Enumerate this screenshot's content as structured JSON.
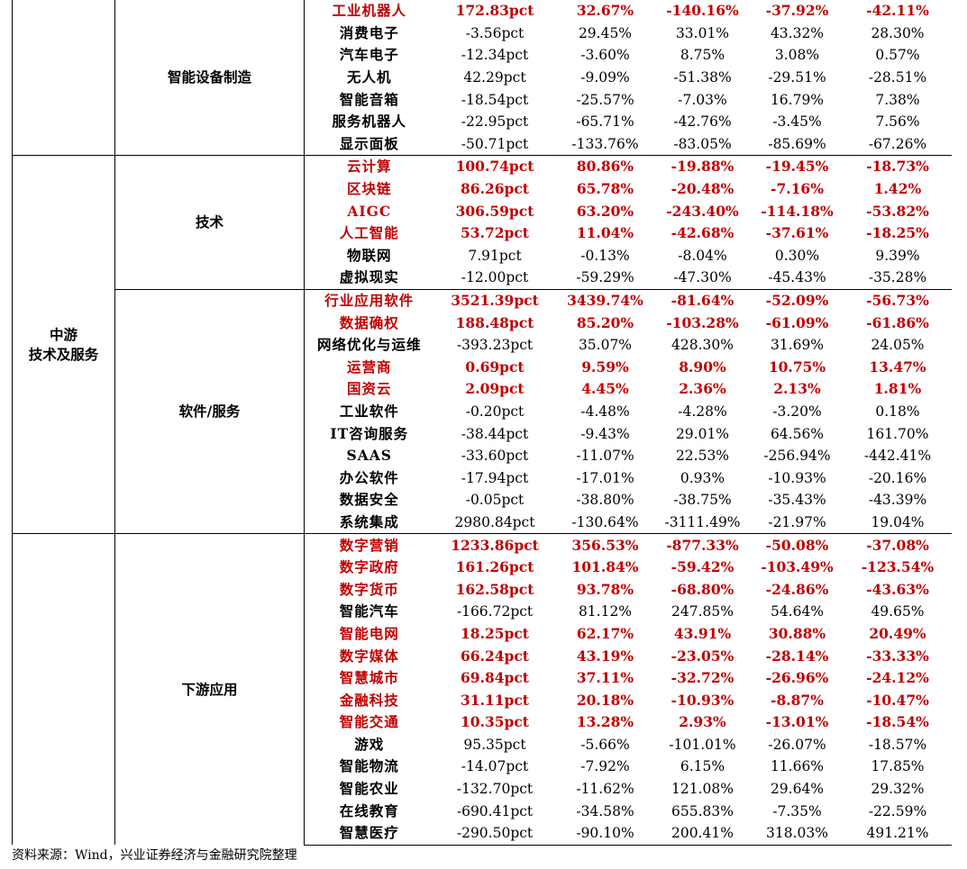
{
  "source_note": "资料来源：Wind，兴业证券经济与金融研究院整理",
  "sections": [
    {
      "stage": "",
      "subgroups": [
        {
          "name": "智能设备制造",
          "rows": [
            {
              "name": "工业机器人",
              "values": [
                "172.83pct",
                "32.67%",
                "-140.16%",
                "-37.92%",
                "-42.11%"
              ],
              "highlight": true
            },
            {
              "name": "消费电子",
              "values": [
                "-3.56pct",
                "29.45%",
                "33.01%",
                "43.32%",
                "28.30%"
              ],
              "highlight": false
            },
            {
              "name": "汽车电子",
              "values": [
                "-12.34pct",
                "-3.60%",
                "8.75%",
                "3.08%",
                "0.57%"
              ],
              "highlight": false
            },
            {
              "name": "无人机",
              "values": [
                "42.29pct",
                "-9.09%",
                "-51.38%",
                "-29.51%",
                "-28.51%"
              ],
              "highlight": false
            },
            {
              "name": "智能音箱",
              "values": [
                "-18.54pct",
                "-25.57%",
                "-7.03%",
                "16.79%",
                "7.38%"
              ],
              "highlight": false
            },
            {
              "name": "服务机器人",
              "values": [
                "-22.95pct",
                "-65.71%",
                "-42.76%",
                "-3.45%",
                "7.56%"
              ],
              "highlight": false
            },
            {
              "name": "显示面板",
              "values": [
                "-50.71pct",
                "-133.76%",
                "-83.05%",
                "-85.69%",
                "-67.26%"
              ],
              "highlight": false
            }
          ]
        }
      ]
    },
    {
      "stage": "中游\n技术及服务",
      "subgroups": [
        {
          "name": "技术",
          "rows": [
            {
              "name": "云计算",
              "values": [
                "100.74pct",
                "80.86%",
                "-19.88%",
                "-19.45%",
                "-18.73%"
              ],
              "highlight": true
            },
            {
              "name": "区块链",
              "values": [
                "86.26pct",
                "65.78%",
                "-20.48%",
                "-7.16%",
                "1.42%"
              ],
              "highlight": true
            },
            {
              "name": "AIGC",
              "values": [
                "306.59pct",
                "63.20%",
                "-243.40%",
                "-114.18%",
                "-53.82%"
              ],
              "highlight": true
            },
            {
              "name": "人工智能",
              "values": [
                "53.72pct",
                "11.04%",
                "-42.68%",
                "-37.61%",
                "-18.25%"
              ],
              "highlight": true
            },
            {
              "name": "物联网",
              "values": [
                "7.91pct",
                "-0.13%",
                "-8.04%",
                "0.30%",
                "9.39%"
              ],
              "highlight": false
            },
            {
              "name": "虚拟现实",
              "values": [
                "-12.00pct",
                "-59.29%",
                "-47.30%",
                "-45.43%",
                "-35.28%"
              ],
              "highlight": false
            }
          ]
        },
        {
          "name": "软件/服务",
          "rows": [
            {
              "name": "行业应用软件",
              "values": [
                "3521.39pct",
                "3439.74%",
                "-81.64%",
                "-52.09%",
                "-56.73%"
              ],
              "highlight": true
            },
            {
              "name": "数据确权",
              "values": [
                "188.48pct",
                "85.20%",
                "-103.28%",
                "-61.09%",
                "-61.86%"
              ],
              "highlight": true
            },
            {
              "name": "网络优化与运维",
              "values": [
                "-393.23pct",
                "35.07%",
                "428.30%",
                "31.69%",
                "24.05%"
              ],
              "highlight": false
            },
            {
              "name": "运营商",
              "values": [
                "0.69pct",
                "9.59%",
                "8.90%",
                "10.75%",
                "13.47%"
              ],
              "highlight": true
            },
            {
              "name": "国资云",
              "values": [
                "2.09pct",
                "4.45%",
                "2.36%",
                "2.13%",
                "1.81%"
              ],
              "highlight": true
            },
            {
              "name": "工业软件",
              "values": [
                "-0.20pct",
                "-4.48%",
                "-4.28%",
                "-3.20%",
                "0.18%"
              ],
              "highlight": false
            },
            {
              "name": "IT咨询服务",
              "values": [
                "-38.44pct",
                "-9.43%",
                "29.01%",
                "64.56%",
                "161.70%"
              ],
              "highlight": false
            },
            {
              "name": "SAAS",
              "values": [
                "-33.60pct",
                "-11.07%",
                "22.53%",
                "-256.94%",
                "-442.41%"
              ],
              "highlight": false
            },
            {
              "name": "办公软件",
              "values": [
                "-17.94pct",
                "-17.01%",
                "0.93%",
                "-10.93%",
                "-20.16%"
              ],
              "highlight": false
            },
            {
              "name": "数据安全",
              "values": [
                "-0.05pct",
                "-38.80%",
                "-38.75%",
                "-35.43%",
                "-43.39%"
              ],
              "highlight": false
            },
            {
              "name": "系统集成",
              "values": [
                "2980.84pct",
                "-130.64%",
                "-3111.49%",
                "-21.97%",
                "19.04%"
              ],
              "highlight": false
            }
          ]
        }
      ]
    },
    {
      "stage": "",
      "subgroups": [
        {
          "name": "下游应用",
          "rows": [
            {
              "name": "数字营销",
              "values": [
                "1233.86pct",
                "356.53%",
                "-877.33%",
                "-50.08%",
                "-37.08%"
              ],
              "highlight": true
            },
            {
              "name": "数字政府",
              "values": [
                "161.26pct",
                "101.84%",
                "-59.42%",
                "-103.49%",
                "-123.54%"
              ],
              "highlight": true
            },
            {
              "name": "数字货币",
              "values": [
                "162.58pct",
                "93.78%",
                "-68.80%",
                "-24.86%",
                "-43.63%"
              ],
              "highlight": true
            },
            {
              "name": "智能汽车",
              "values": [
                "-166.72pct",
                "81.12%",
                "247.85%",
                "54.64%",
                "49.65%"
              ],
              "highlight": false
            },
            {
              "name": "智能电网",
              "values": [
                "18.25pct",
                "62.17%",
                "43.91%",
                "30.88%",
                "20.49%"
              ],
              "highlight": true
            },
            {
              "name": "数字媒体",
              "values": [
                "66.24pct",
                "43.19%",
                "-23.05%",
                "-28.14%",
                "-33.33%"
              ],
              "highlight": true
            },
            {
              "name": "智慧城市",
              "values": [
                "69.84pct",
                "37.11%",
                "-32.72%",
                "-26.96%",
                "-24.12%"
              ],
              "highlight": true
            },
            {
              "name": "金融科技",
              "values": [
                "31.11pct",
                "20.18%",
                "-10.93%",
                "-8.87%",
                "-10.47%"
              ],
              "highlight": true
            },
            {
              "name": "智能交通",
              "values": [
                "10.35pct",
                "13.28%",
                "2.93%",
                "-13.01%",
                "-18.54%"
              ],
              "highlight": true
            },
            {
              "name": "游戏",
              "values": [
                "95.35pct",
                "-5.66%",
                "-101.01%",
                "-26.07%",
                "-18.57%"
              ],
              "highlight": false
            },
            {
              "name": "智能物流",
              "values": [
                "-14.07pct",
                "-7.92%",
                "6.15%",
                "11.66%",
                "17.85%"
              ],
              "highlight": false
            },
            {
              "name": "智能农业",
              "values": [
                "-132.70pct",
                "-11.62%",
                "121.08%",
                "29.64%",
                "29.32%"
              ],
              "highlight": false
            },
            {
              "name": "在线教育",
              "values": [
                "-690.41pct",
                "-34.58%",
                "655.83%",
                "-7.35%",
                "-22.59%"
              ],
              "highlight": false
            },
            {
              "name": "智慧医疗",
              "values": [
                "-290.50pct",
                "-90.10%",
                "200.41%",
                "318.03%",
                "491.21%"
              ],
              "highlight": false
            }
          ]
        }
      ]
    }
  ]
}
